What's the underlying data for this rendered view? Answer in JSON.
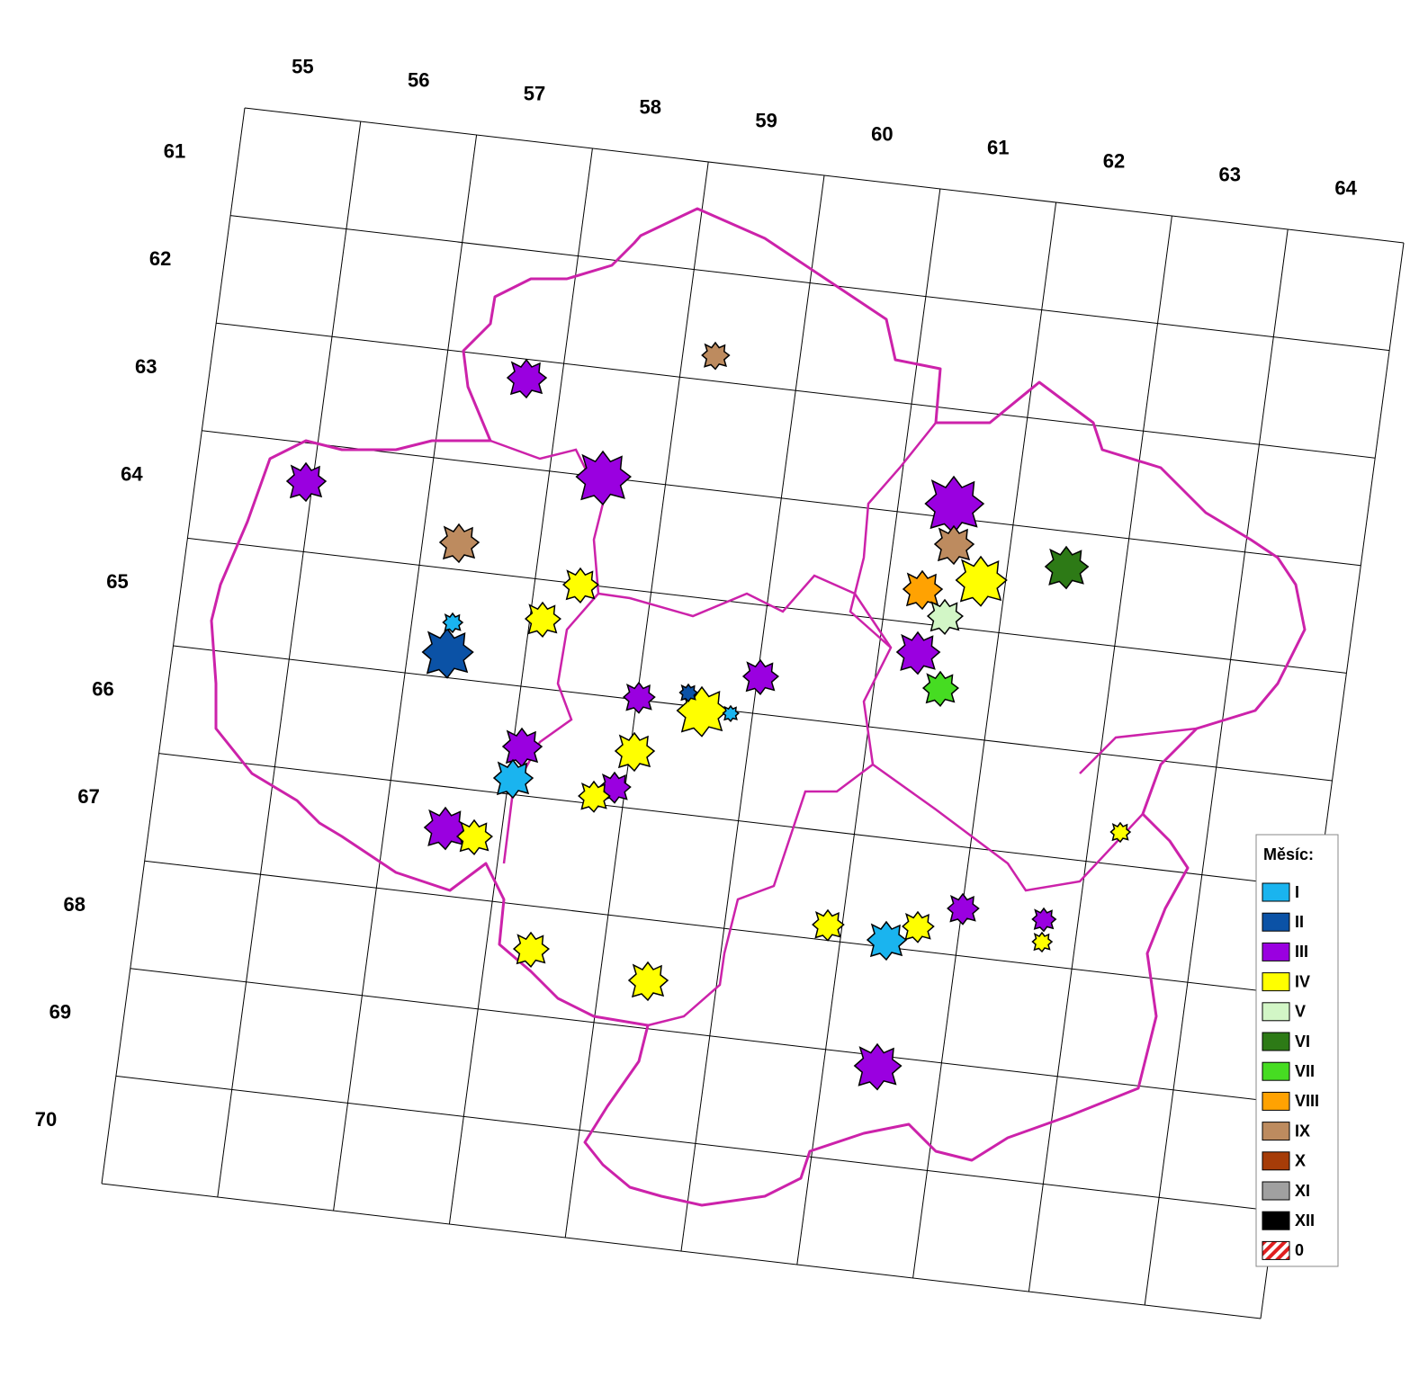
{
  "grid": {
    "columns": [
      55,
      56,
      57,
      58,
      59,
      60,
      61,
      62,
      63,
      64
    ],
    "rows": [
      61,
      62,
      63,
      64,
      65,
      66,
      67,
      68,
      69,
      70
    ]
  },
  "legend": {
    "title": "Měsíc:",
    "items": [
      {
        "label": "I",
        "color": "#1ab4ef"
      },
      {
        "label": "II",
        "color": "#0b52a6"
      },
      {
        "label": "III",
        "color": "#9a00e0"
      },
      {
        "label": "IV",
        "color": "#ffff00"
      },
      {
        "label": "V",
        "color": "#d2f6c6"
      },
      {
        "label": "VI",
        "color": "#2d7a16"
      },
      {
        "label": "VII",
        "color": "#46dc22"
      },
      {
        "label": "VIII",
        "color": "#ffa202"
      },
      {
        "label": "IX",
        "color": "#bd8b5f"
      },
      {
        "label": "X",
        "color": "#a63c08"
      },
      {
        "label": "XI",
        "color": "#a0a0a0"
      },
      {
        "label": "XII",
        "color": "#000000"
      },
      {
        "label": "0",
        "color": "#e02020",
        "hatched": true
      }
    ]
  }
}
